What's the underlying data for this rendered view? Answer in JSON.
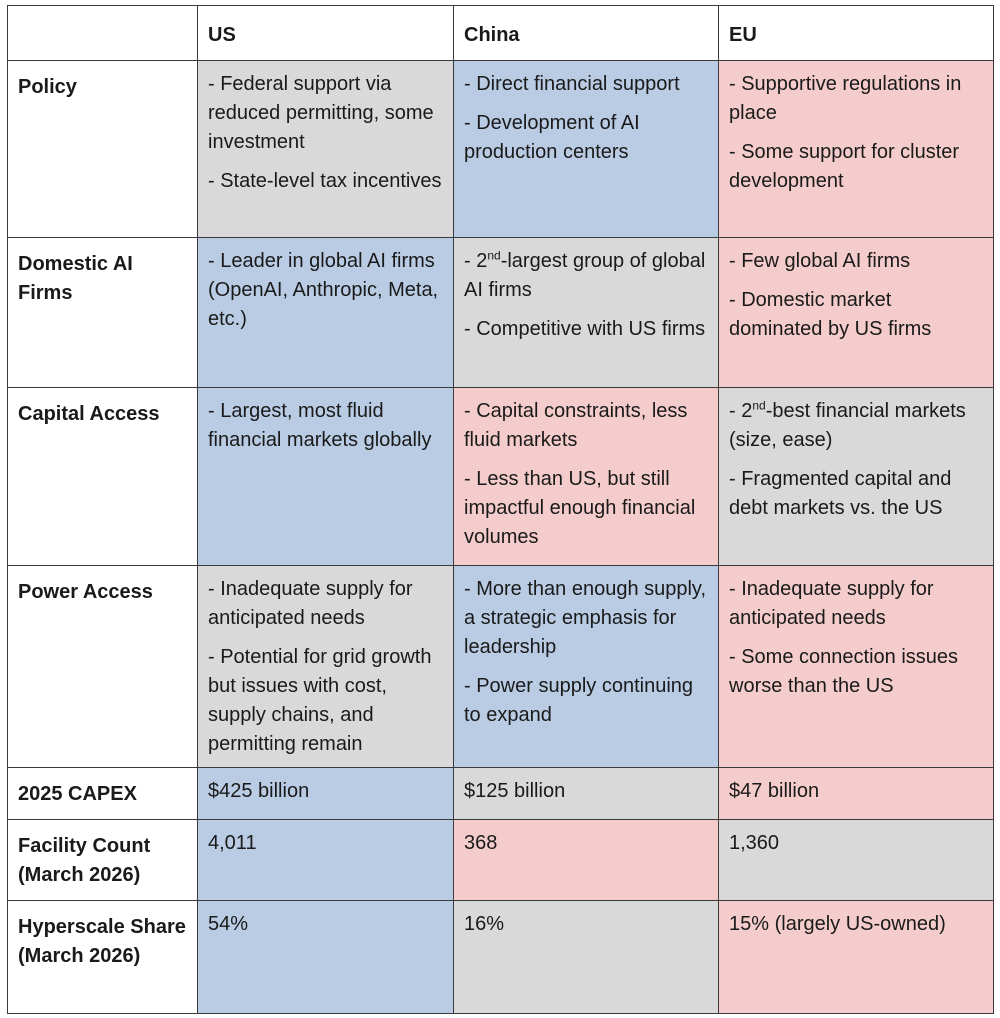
{
  "colors": {
    "blue": "#b9cce4",
    "gray": "#d9d9d9",
    "pink": "#f4cccc",
    "border": "#3a3a3a"
  },
  "headers": [
    "",
    "US",
    "China",
    "EU"
  ],
  "rows": [
    {
      "label": "Policy",
      "cells": [
        {
          "color": "gray",
          "bullets": [
            "- Federal support via reduced permitting, some investment",
            "- State-level tax incentives"
          ]
        },
        {
          "color": "blue",
          "bullets": [
            "- Direct financial support",
            "- Development of AI production centers"
          ]
        },
        {
          "color": "pink",
          "bullets": [
            "- Supportive regulations in place",
            "- Some support for cluster development"
          ]
        }
      ]
    },
    {
      "label": "Domestic AI Firms",
      "cells": [
        {
          "color": "blue",
          "bullets": [
            "- Leader in global AI firms (OpenAI, Anthropic, Meta, etc.)"
          ]
        },
        {
          "color": "gray",
          "bullets": [
            {
              "pre": "- 2",
              "sup": "nd",
              "post": "-largest group of global AI firms"
            },
            "- Competitive with US firms"
          ]
        },
        {
          "color": "pink",
          "bullets": [
            "- Few global AI firms",
            "- Domestic market dominated by US firms"
          ]
        }
      ]
    },
    {
      "label": "Capital Access",
      "cells": [
        {
          "color": "blue",
          "bullets": [
            "- Largest, most fluid financial markets globally"
          ]
        },
        {
          "color": "pink",
          "bullets": [
            "- Capital constraints, less fluid markets",
            "- Less than US, but still impactful enough financial volumes"
          ]
        },
        {
          "color": "gray",
          "bullets": [
            {
              "pre": "- 2",
              "sup": "nd",
              "post": "-best financial markets (size, ease)"
            },
            "- Fragmented capital and debt markets vs. the US"
          ]
        }
      ]
    },
    {
      "label": "Power Access",
      "cells": [
        {
          "color": "gray",
          "bullets": [
            "- Inadequate supply for anticipated needs",
            "- Potential for grid growth but issues with cost, supply chains, and permitting remain"
          ]
        },
        {
          "color": "blue",
          "bullets": [
            "- More than enough supply, a strategic emphasis for leadership",
            "- Power supply continuing to expand"
          ]
        },
        {
          "color": "pink",
          "bullets": [
            "- Inadequate supply for anticipated needs",
            "- Some connection issues worse than the US"
          ]
        }
      ]
    },
    {
      "label": "2025 CAPEX",
      "cells": [
        {
          "color": "blue",
          "bullets": [
            "$425 billion"
          ]
        },
        {
          "color": "gray",
          "bullets": [
            "$125 billion"
          ]
        },
        {
          "color": "pink",
          "bullets": [
            "$47 billion"
          ]
        }
      ]
    },
    {
      "label": "Facility Count (March 2026)",
      "cells": [
        {
          "color": "blue",
          "bullets": [
            "4,011"
          ]
        },
        {
          "color": "pink",
          "bullets": [
            "368"
          ]
        },
        {
          "color": "gray",
          "bullets": [
            "1,360"
          ]
        }
      ]
    },
    {
      "label": "Hyperscale Share (March 2026)",
      "cells": [
        {
          "color": "blue",
          "bullets": [
            "54%"
          ]
        },
        {
          "color": "gray",
          "bullets": [
            "16%"
          ]
        },
        {
          "color": "pink",
          "bullets": [
            "15% (largely US-owned)"
          ]
        }
      ]
    }
  ]
}
